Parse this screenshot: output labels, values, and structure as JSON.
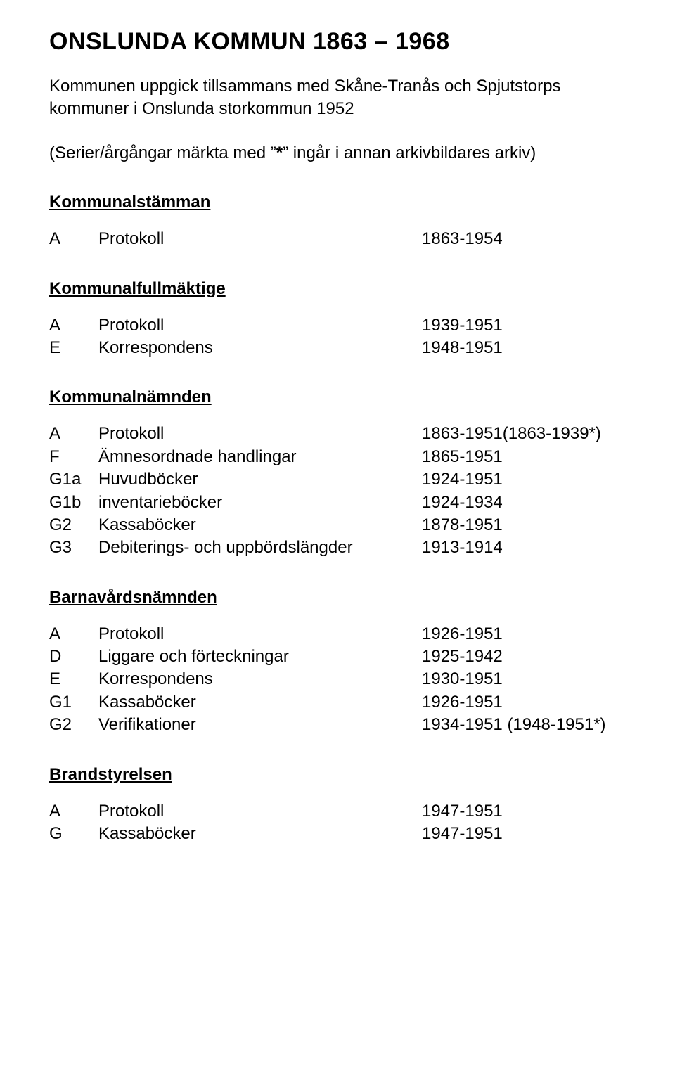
{
  "title": "ONSLUNDA KOMMUN 1863 – 1968",
  "intro_line1": "Kommunen uppgick tillsammans med Skåne-Tranås och Spjutstorps kommuner i Onslunda storkommun 1952",
  "intro_line2_pre": "(Serier/årgångar märkta med ”",
  "intro_line2_ast": "*",
  "intro_line2_post": "” ingår i annan arkivbildares arkiv)",
  "sections": [
    {
      "heading": "Kommunalstämman",
      "rows": [
        {
          "code": "A",
          "label": "Protokoll",
          "range": "1863-1954"
        }
      ]
    },
    {
      "heading": "Kommunalfullmäktige",
      "rows": [
        {
          "code": "A",
          "label": "Protokoll",
          "range": "1939-1951"
        },
        {
          "code": "E",
          "label": "Korrespondens",
          "range": "1948-1951"
        }
      ]
    },
    {
      "heading": "Kommunalnämnden",
      "rows": [
        {
          "code": "A",
          "label": "Protokoll",
          "range": "1863-1951(1863-1939*)"
        },
        {
          "code": "F",
          "label": "Ämnesordnade handlingar",
          "range": "1865-1951"
        },
        {
          "code": "G1a",
          "label": "Huvudböcker",
          "range": "1924-1951"
        },
        {
          "code": "G1b",
          "label": "inventarieböcker",
          "range": "1924-1934"
        },
        {
          "code": "G2",
          "label": "Kassaböcker",
          "range": "1878-1951"
        },
        {
          "code": "G3",
          "label": "Debiterings- och uppbördslängder",
          "range": "1913-1914"
        }
      ]
    },
    {
      "heading": "Barnavårdsnämnden",
      "rows": [
        {
          "code": "A",
          "label": "Protokoll",
          "range": "1926-1951"
        },
        {
          "code": "D",
          "label": "Liggare och förteckningar",
          "range": "1925-1942"
        },
        {
          "code": "E",
          "label": "Korrespondens",
          "range": "1930-1951"
        },
        {
          "code": "G1",
          "label": "Kassaböcker",
          "range": "1926-1951"
        },
        {
          "code": "G2",
          "label": "Verifikationer",
          "range": "1934-1951 (1948-1951*)"
        }
      ]
    },
    {
      "heading": "Brandstyrelsen",
      "rows": [
        {
          "code": "A",
          "label": "Protokoll",
          "range": "1947-1951"
        },
        {
          "code": "G",
          "label": "Kassaböcker",
          "range": "1947-1951"
        }
      ]
    }
  ]
}
